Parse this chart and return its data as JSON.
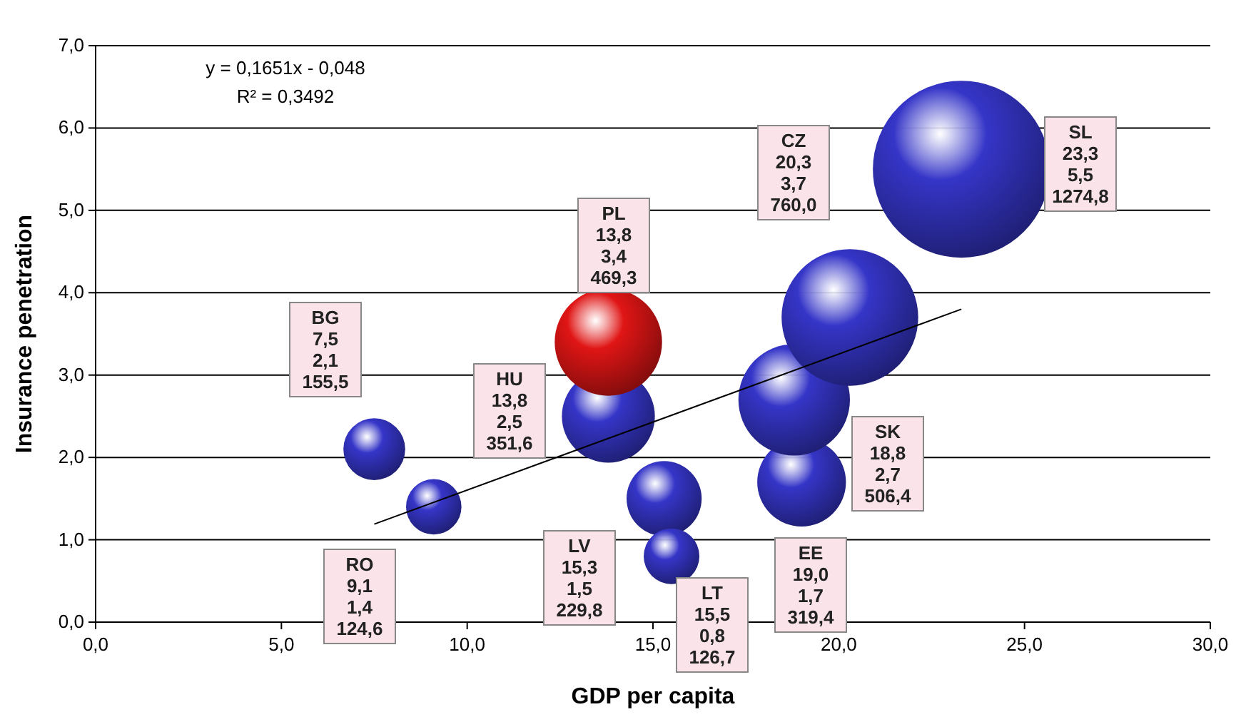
{
  "chart_data": {
    "type": "bubble",
    "xlabel": "GDP per capita",
    "ylabel": "Insurance penetration",
    "xlim": [
      0,
      30
    ],
    "xticks": [
      {
        "value": 0,
        "label": "0,0"
      },
      {
        "value": 5,
        "label": "5,0"
      },
      {
        "value": 10,
        "label": "10,0"
      },
      {
        "value": 15,
        "label": "15,0"
      },
      {
        "value": 20,
        "label": "20,0"
      },
      {
        "value": 25,
        "label": "25,0"
      },
      {
        "value": 30,
        "label": "30,0"
      }
    ],
    "ylim": [
      0,
      7
    ],
    "yticks": [
      {
        "value": 0,
        "label": "0,0"
      },
      {
        "value": 1,
        "label": "1,0"
      },
      {
        "value": 2,
        "label": "2,0"
      },
      {
        "value": 3,
        "label": "3,0"
      },
      {
        "value": 4,
        "label": "4,0"
      },
      {
        "value": 5,
        "label": "5,0"
      },
      {
        "value": 6,
        "label": "6,0"
      },
      {
        "value": 7,
        "label": "7,0"
      }
    ],
    "grid": "y",
    "series": [
      {
        "x": [
          7.5,
          9.1,
          13.8,
          13.8,
          15.3,
          15.5,
          19.0,
          18.8,
          20.3,
          23.3
        ],
        "values": [
          2.1,
          1.4,
          2.5,
          3.4,
          1.5,
          0.8,
          1.7,
          2.7,
          3.7,
          5.5
        ],
        "sizes": [
          0.122,
          0.098,
          0.276,
          0.368,
          0.18,
          0.099,
          0.251,
          0.397,
          0.596,
          1
        ],
        "colors": [
          "#3535c8",
          "#3535c8",
          "#3535c8",
          "#e01515",
          "#3535c8",
          "#3535c8",
          "#3535c8",
          "#3535c8",
          "#3535c8",
          "#3535c8"
        ]
      },
      {
        "type": "line",
        "x": [
          7.5,
          23.3
        ],
        "values": [
          1.19,
          3.8
        ],
        "color": "#000000"
      }
    ],
    "annotations": [
      "y = 0,1651x - 0,048",
      "R² = 0,3492",
      "BG\n7,5\n2,1\n155,5",
      "RO\n9,1\n1,4\n124,6",
      "HU\n13,8\n2,5\n351,6",
      "PL\n13,8\n3,4\n469,3",
      "LV\n15,3\n1,5\n229,8",
      "LT\n15,5\n0,8\n126,7",
      "EE\n19,0\n1,7\n319,4",
      "SK\n18,8\n2,7\n506,4",
      "CZ\n20,3\n3,7\n760,0",
      "SL\n23,3\n5,5\n1274,8"
    ]
  }
}
